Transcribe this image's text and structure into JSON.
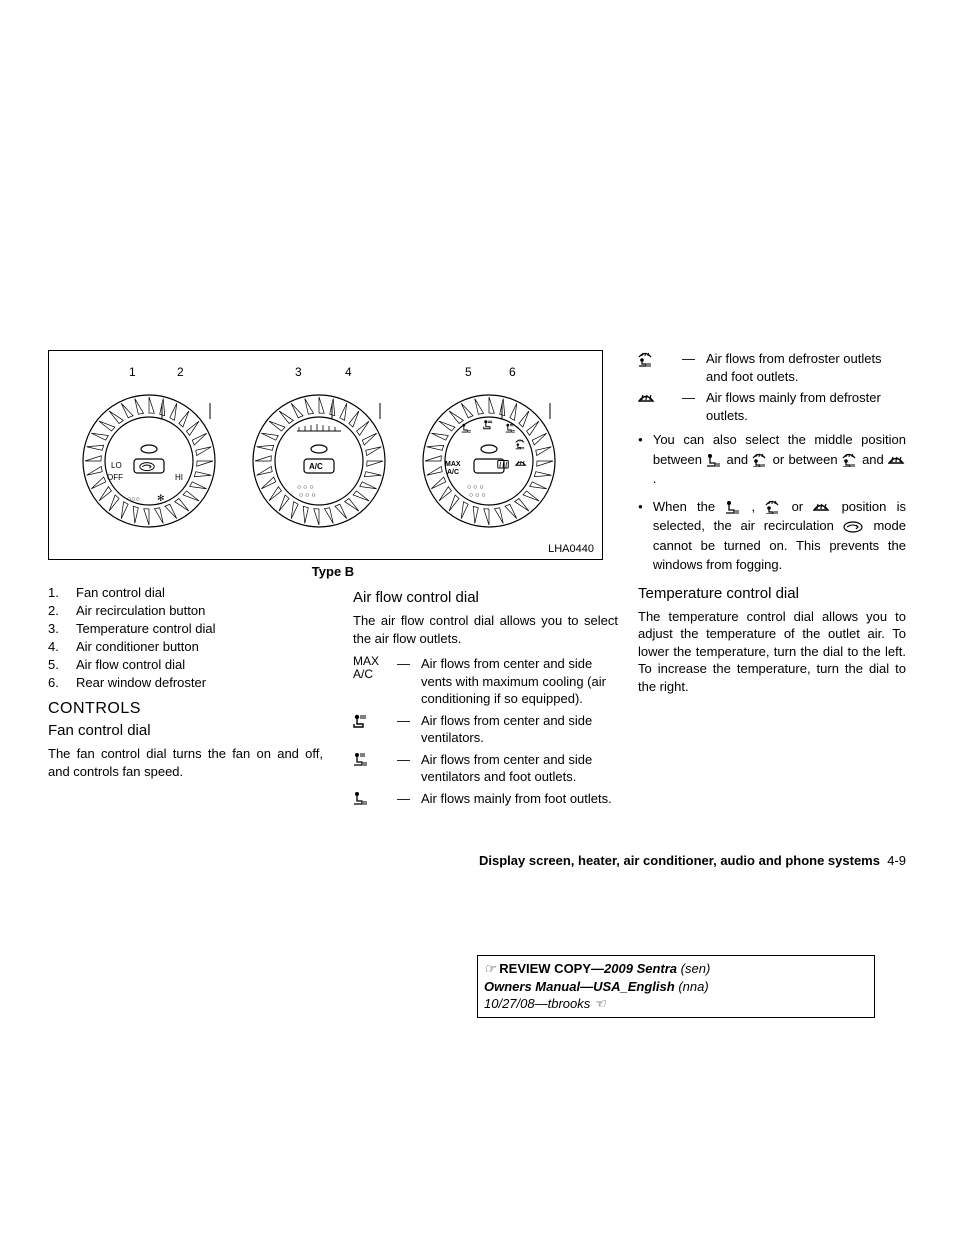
{
  "diagram": {
    "code": "LHA0440",
    "caption": "Type B",
    "numbers": [
      "1",
      "2",
      "3",
      "4",
      "5",
      "6"
    ],
    "dial1": {
      "off": "OFF",
      "lo": "LO",
      "hi": "HI"
    },
    "dial2": {
      "ac": "A/C"
    },
    "dial3": {
      "max": "MAX",
      "ac": "A/C"
    }
  },
  "legend": [
    {
      "n": "1.",
      "t": "Fan control dial"
    },
    {
      "n": "2.",
      "t": "Air recirculation button"
    },
    {
      "n": "3.",
      "t": "Temperature control dial"
    },
    {
      "n": "4.",
      "t": "Air conditioner button"
    },
    {
      "n": "5.",
      "t": "Air flow control dial"
    },
    {
      "n": "6.",
      "t": "Rear window defroster"
    }
  ],
  "controls_heading": "CONTROLS",
  "fan_heading": "Fan control dial",
  "fan_body": "The fan control dial turns the fan on and off, and controls fan speed.",
  "airflow_heading": "Air flow control dial",
  "airflow_intro": "The air flow control dial allows you to select the air flow outlets.",
  "airflow_rows": [
    {
      "icon": "MAX\nA/C",
      "text": "Air flows from center and side vents with maximum cooling (air conditioning if so equipped)."
    },
    {
      "icon": "face",
      "text": "Air flows from center and side ventilators."
    },
    {
      "icon": "bilevel",
      "text": "Air flows from center and side ventilators and foot outlets."
    },
    {
      "icon": "foot",
      "text": "Air flows mainly from foot outlets."
    },
    {
      "icon": "footdef",
      "text": "Air flows from defroster outlets and foot outlets."
    },
    {
      "icon": "defrost",
      "text": "Air flows mainly from defroster outlets."
    }
  ],
  "bullets": [
    "You can also select the middle position between {foot} and {footdef} or between {footdef} and {defrost} .",
    "When the {foot} , {footdef} or {defrost} position is selected, the air recirculation {recirc} mode cannot be turned on. This prevents the windows from fogging."
  ],
  "temp_heading": "Temperature control dial",
  "temp_body": "The temperature control dial allows you to adjust the temperature of the outlet air. To lower the temperature, turn the dial to the left. To increase the temperature, turn the dial to the right.",
  "footer": {
    "section": "Display screen, heater, air conditioner, audio and phone systems",
    "page": "4-9"
  },
  "review": {
    "line1a": "REVIEW COPY—",
    "line1b": "2009 Sentra",
    "line1c": "(sen)",
    "line2a": "Owners Manual—USA_English",
    "line2b": "(nna)",
    "line3": "10/27/08—tbrooks"
  },
  "colors": {
    "stroke": "#000",
    "bg": "#fff"
  }
}
